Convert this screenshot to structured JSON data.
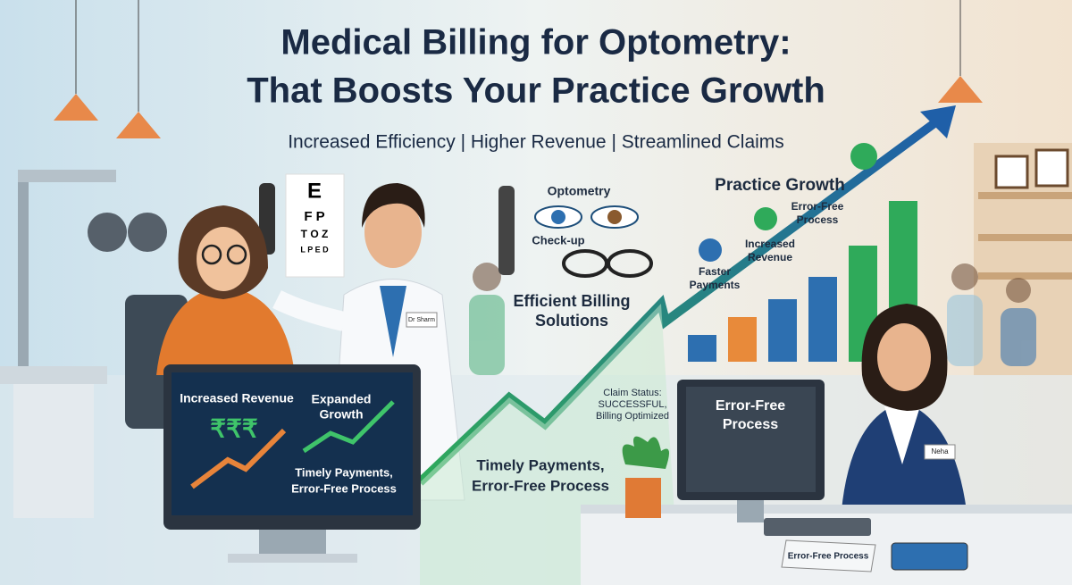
{
  "header": {
    "title_lines": [
      "Medical Billing for Optometry:",
      "That Boosts Your Practice Growth"
    ],
    "subtitle": "Increased Efficiency | Higher Revenue | Streamlined Claims"
  },
  "eye_chart": [
    "E",
    "F P",
    "T O Z",
    "L P E D"
  ],
  "doctor_badge": "Dr Sharm",
  "monitor": {
    "revenue": "Increased Revenue",
    "currency": "₹₹₹",
    "growth_lines": [
      "Expanded",
      "Growth"
    ],
    "footer_lines": [
      "Timely Payments,",
      "Error-Free Process"
    ]
  },
  "middle": {
    "optometry": "Optometry",
    "checkup": "Check-up",
    "billing_lines": [
      "Efficient Billing",
      "Solutions"
    ],
    "claim_lines": [
      "Claim Status:",
      "SUCCESSFUL,",
      "Billing Optimized"
    ],
    "timely_lines": [
      "Timely Payments,",
      "Error-Free Process"
    ]
  },
  "growth": {
    "title": "Practice Growth",
    "error_free_lines": [
      "Error-Free",
      "Process"
    ],
    "revenue_lines": [
      "Increased",
      "Revenue"
    ],
    "payments_lines": [
      "Faster",
      "Payments"
    ]
  },
  "desk": {
    "screen_lines": [
      "Error-Free",
      "Process"
    ],
    "badge": "Neha",
    "sign": "Error-Free Process"
  }
}
